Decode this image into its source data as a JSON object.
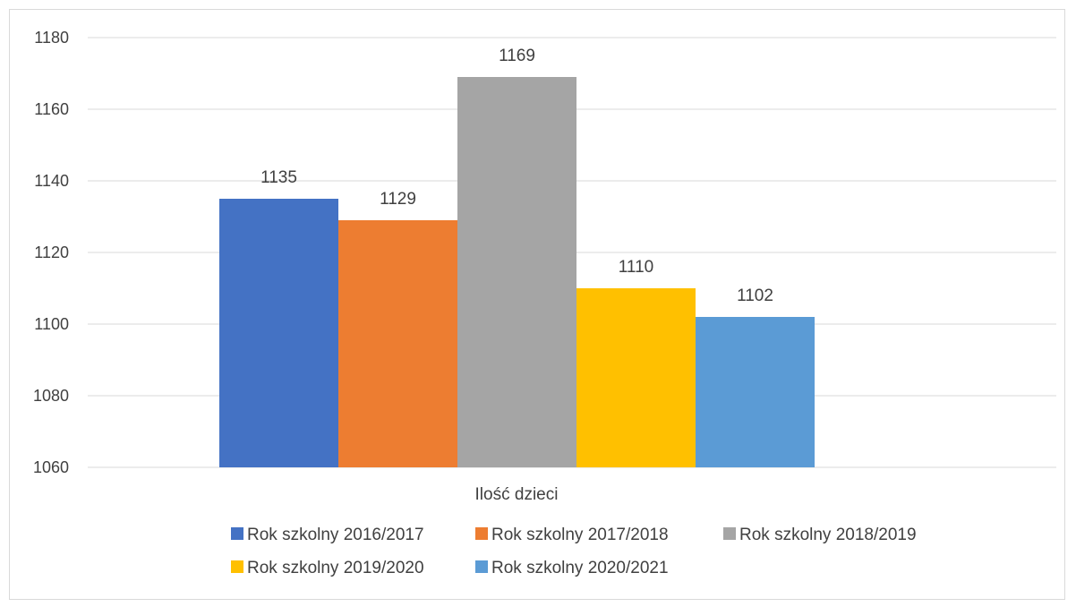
{
  "chart_data": {
    "type": "bar",
    "categories": [
      "Ilość dzieci"
    ],
    "series": [
      {
        "name": "Rok szkolny 2016/2017",
        "values": [
          1135
        ],
        "color": "#4472c4"
      },
      {
        "name": "Rok szkolny 2017/2018",
        "values": [
          1129
        ],
        "color": "#ed7d31"
      },
      {
        "name": "Rok szkolny 2018/2019",
        "values": [
          1169
        ],
        "color": "#a5a5a5"
      },
      {
        "name": "Rok szkolny 2019/2020",
        "values": [
          1110
        ],
        "color": "#ffc000"
      },
      {
        "name": "Rok szkolny 2020/2021",
        "values": [
          1102
        ],
        "color": "#5b9bd5"
      }
    ],
    "yticks": [
      "1060",
      "1080",
      "1100",
      "1120",
      "1140",
      "1160",
      "1180"
    ],
    "ylim": [
      1060,
      1180
    ],
    "grid": true,
    "legend_position": "bottom"
  }
}
